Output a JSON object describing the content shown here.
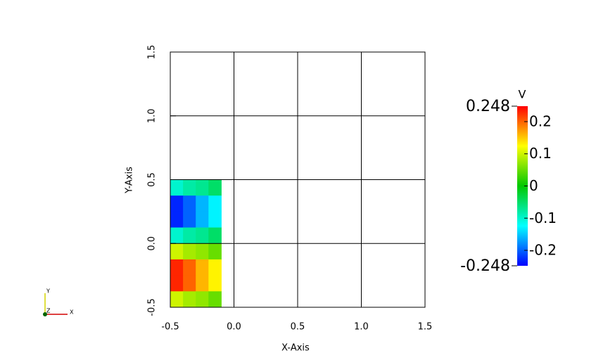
{
  "chart_data": {
    "type": "heatmap",
    "x_label": "X-Axis",
    "y_label": "Y-Axis",
    "xlim": [
      -0.5,
      1.5
    ],
    "ylim": [
      -0.5,
      1.5
    ],
    "xticks": [
      -0.5,
      {
        "value": 0,
        "label": "0.0"
      },
      0.5,
      {
        "value": 1,
        "label": "1.0"
      },
      1.5
    ],
    "yticks": [
      -0.5,
      {
        "value": 0,
        "label": "0.0"
      },
      0.5,
      {
        "value": 1,
        "label": "1.0"
      },
      1.5
    ],
    "grid": true,
    "x": [
      -0.45,
      -0.35,
      -0.25,
      -0.15
    ],
    "y": [
      0.4375,
      0.3125,
      0.1875,
      0.0625,
      -0.0625,
      -0.1875,
      -0.3125,
      -0.4375
    ],
    "z": [
      [
        -0.1,
        -0.08,
        -0.07,
        -0.05
      ],
      [
        -0.23,
        -0.2,
        -0.16,
        -0.13
      ],
      [
        -0.23,
        -0.2,
        -0.16,
        -0.13
      ],
      [
        -0.1,
        -0.08,
        -0.07,
        -0.05
      ],
      [
        0.1,
        0.08,
        0.07,
        0.05
      ],
      [
        0.23,
        0.2,
        0.16,
        0.13
      ],
      [
        0.23,
        0.2,
        0.16,
        0.13
      ],
      [
        0.1,
        0.08,
        0.07,
        0.05
      ]
    ],
    "colorscale": [
      "#0000ff",
      "#00ffff",
      "#00c800",
      "#ffff00",
      "#ff0000"
    ],
    "colorbar_title": "V",
    "zlim": [
      -0.248,
      0.248
    ],
    "zticks": [
      -0.2,
      -0.1,
      0,
      0.1,
      0.2
    ],
    "orientation_axes": [
      "X",
      "Y",
      "Z"
    ]
  }
}
